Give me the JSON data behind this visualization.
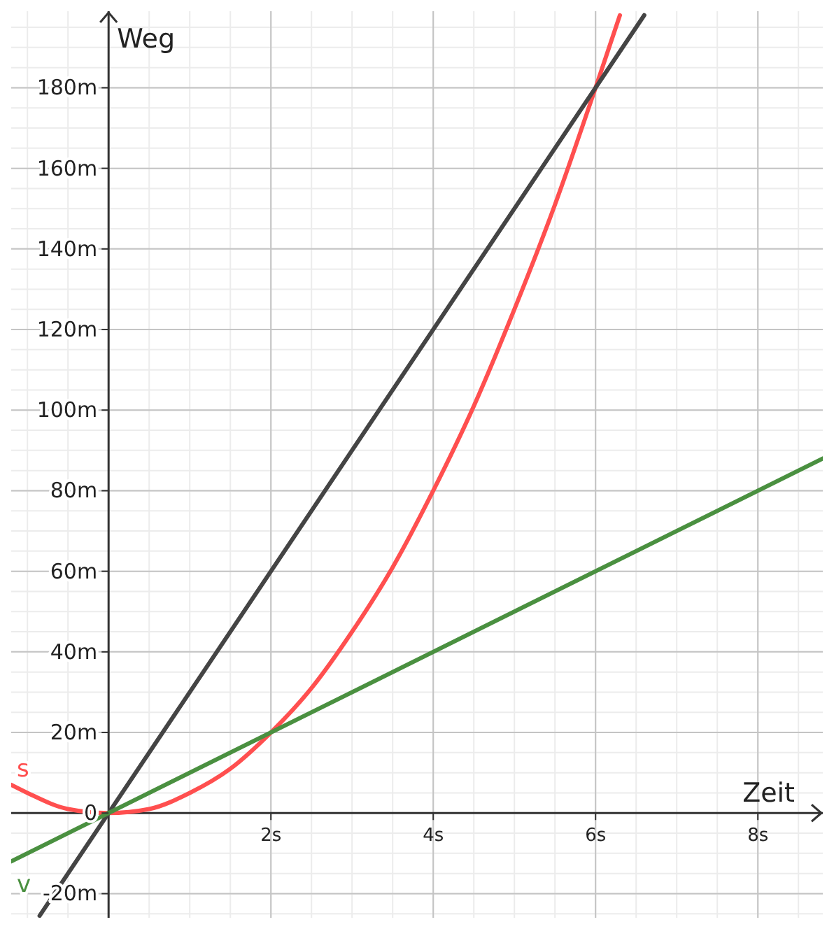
{
  "chart_data": {
    "type": "line",
    "xlabel": "Zeit",
    "ylabel": "Weg",
    "xlim": [
      -1.2,
      8.8
    ],
    "ylim": [
      -26,
      199
    ],
    "xticks": [
      {
        "value": 2,
        "label": "2s"
      },
      {
        "value": 4,
        "label": "4s"
      },
      {
        "value": 6,
        "label": "6s"
      },
      {
        "value": 8,
        "label": "8s"
      }
    ],
    "yticks": [
      {
        "value": -20,
        "label": "-20m"
      },
      {
        "value": 0,
        "label": "0"
      },
      {
        "value": 20,
        "label": "20m"
      },
      {
        "value": 40,
        "label": "40m"
      },
      {
        "value": 60,
        "label": "60m"
      },
      {
        "value": 80,
        "label": "80m"
      },
      {
        "value": 100,
        "label": "100m"
      },
      {
        "value": 120,
        "label": "120m"
      },
      {
        "value": 140,
        "label": "140m"
      },
      {
        "value": 160,
        "label": "160m"
      },
      {
        "value": 180,
        "label": "180m"
      }
    ],
    "grid": true,
    "marker": "none",
    "line_style": "solid",
    "series": [
      {
        "name": "s",
        "color": "#ff4f4f",
        "x": [
          -1.2,
          -1,
          -0.5,
          0,
          0.5,
          1,
          1.5,
          2,
          2.5,
          3,
          3.5,
          4,
          4.5,
          5,
          5.5,
          6,
          6.3
        ],
        "values": [
          7,
          5,
          1,
          0,
          1,
          5,
          11,
          20,
          31,
          45,
          61,
          80,
          101,
          125,
          151,
          180,
          198
        ]
      },
      {
        "color": "#444444",
        "x": [
          -0.85,
          6.6
        ],
        "values": [
          -25.5,
          198
        ]
      },
      {
        "name": "v",
        "color": "#4a9040",
        "x": [
          -1.2,
          8.8
        ],
        "values": [
          -12,
          88
        ]
      }
    ]
  }
}
